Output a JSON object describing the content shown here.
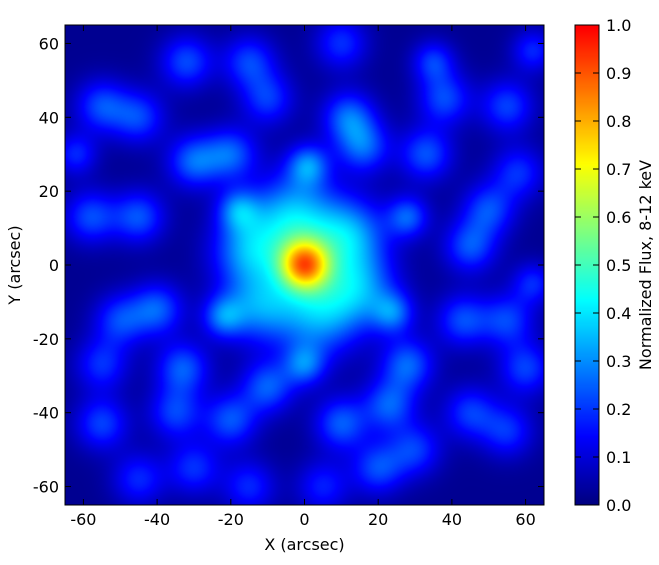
{
  "chart_data": {
    "type": "heatmap",
    "title": "",
    "xlabel": "X (arcsec)",
    "ylabel": "Y (arcsec)",
    "xlim": [
      -65,
      65
    ],
    "ylim": [
      -65,
      65
    ],
    "xticks": [
      -60,
      -40,
      -20,
      0,
      20,
      40,
      60
    ],
    "yticks": [
      -60,
      -40,
      -20,
      0,
      20,
      40,
      60
    ],
    "xtick_labels": [
      "-60",
      "-40",
      "-20",
      "0",
      "20",
      "40",
      "60"
    ],
    "ytick_labels": [
      "-60",
      "-40",
      "-20",
      "0",
      "20",
      "40",
      "60"
    ],
    "grid": false,
    "colormap": "jet",
    "colorbar": {
      "label": "Normalized Flux, 8-12 keV",
      "range": [
        0.0,
        1.0
      ],
      "ticks": [
        0.0,
        0.1,
        0.2,
        0.3,
        0.4,
        0.5,
        0.6,
        0.7,
        0.8,
        0.9,
        1.0
      ],
      "tick_labels": [
        "0.0",
        "0.1",
        "0.2",
        "0.3",
        "0.4",
        "0.5",
        "0.6",
        "0.7",
        "0.8",
        "0.9",
        "1.0"
      ],
      "max_color": "#ff5a00",
      "min_color": "#00007f"
    },
    "background_level": 0.12,
    "blobs": [
      {
        "x": 0,
        "y": 0,
        "sigma": 5,
        "amp": 0.66
      },
      {
        "x": -3,
        "y": 13,
        "sigma": 8,
        "amp": 0.33
      },
      {
        "x": 12,
        "y": 8,
        "sigma": 7,
        "amp": 0.3
      },
      {
        "x": -15,
        "y": 4,
        "sigma": 7,
        "amp": 0.28
      },
      {
        "x": 4,
        "y": -13,
        "sigma": 8,
        "amp": 0.3
      },
      {
        "x": -12,
        "y": -11,
        "sigma": 7,
        "amp": 0.26
      },
      {
        "x": 15,
        "y": -6,
        "sigma": 7,
        "amp": 0.25
      },
      {
        "x": 1,
        "y": 27,
        "sigma": 4,
        "amp": 0.25
      },
      {
        "x": -18,
        "y": 15,
        "sigma": 4,
        "amp": 0.22
      },
      {
        "x": 28,
        "y": 13,
        "sigma": 4,
        "amp": 0.22
      },
      {
        "x": 24,
        "y": -13,
        "sigma": 4,
        "amp": 0.22
      },
      {
        "x": 0,
        "y": -27,
        "sigma": 4,
        "amp": 0.22
      },
      {
        "x": -22,
        "y": -14,
        "sigma": 4,
        "amp": 0.22
      },
      {
        "x": -30,
        "y": 28,
        "sigma": 5,
        "amp": 0.23
      },
      {
        "x": -20,
        "y": 30,
        "sigma": 5,
        "amp": 0.22
      },
      {
        "x": 12,
        "y": 40,
        "sigma": 5,
        "amp": 0.23
      },
      {
        "x": 16,
        "y": 32,
        "sigma": 5,
        "amp": 0.22
      },
      {
        "x": 33,
        "y": 30,
        "sigma": 5,
        "amp": 0.21
      },
      {
        "x": 38,
        "y": 45,
        "sigma": 5,
        "amp": 0.2
      },
      {
        "x": 35,
        "y": 55,
        "sigma": 4,
        "amp": 0.18
      },
      {
        "x": 45,
        "y": 5,
        "sigma": 5,
        "amp": 0.21
      },
      {
        "x": 50,
        "y": 15,
        "sigma": 5,
        "amp": 0.2
      },
      {
        "x": 28,
        "y": -27,
        "sigma": 5,
        "amp": 0.23
      },
      {
        "x": 23,
        "y": -38,
        "sigma": 5,
        "amp": 0.22
      },
      {
        "x": 10,
        "y": -43,
        "sigma": 5,
        "amp": 0.22
      },
      {
        "x": 20,
        "y": -55,
        "sigma": 5,
        "amp": 0.2
      },
      {
        "x": -10,
        "y": -33,
        "sigma": 5,
        "amp": 0.22
      },
      {
        "x": -20,
        "y": -42,
        "sigma": 5,
        "amp": 0.21
      },
      {
        "x": -33,
        "y": -28,
        "sigma": 5,
        "amp": 0.22
      },
      {
        "x": -40,
        "y": -12,
        "sigma": 5,
        "amp": 0.22
      },
      {
        "x": -35,
        "y": -40,
        "sigma": 5,
        "amp": 0.19
      },
      {
        "x": -50,
        "y": -15,
        "sigma": 5,
        "amp": 0.19
      },
      {
        "x": -45,
        "y": 13,
        "sigma": 5,
        "amp": 0.21
      },
      {
        "x": -58,
        "y": 13,
        "sigma": 5,
        "amp": 0.2
      },
      {
        "x": -55,
        "y": 43,
        "sigma": 5,
        "amp": 0.2
      },
      {
        "x": -45,
        "y": 40,
        "sigma": 5,
        "amp": 0.19
      },
      {
        "x": -32,
        "y": 55,
        "sigma": 5,
        "amp": 0.2
      },
      {
        "x": -15,
        "y": 55,
        "sigma": 5,
        "amp": 0.19
      },
      {
        "x": -10,
        "y": 45,
        "sigma": 5,
        "amp": 0.18
      },
      {
        "x": 10,
        "y": 60,
        "sigma": 5,
        "amp": 0.17
      },
      {
        "x": 55,
        "y": 43,
        "sigma": 5,
        "amp": 0.19
      },
      {
        "x": 58,
        "y": 25,
        "sigma": 5,
        "amp": 0.17
      },
      {
        "x": 43,
        "y": -15,
        "sigma": 5,
        "amp": 0.2
      },
      {
        "x": 55,
        "y": -15,
        "sigma": 5,
        "amp": 0.19
      },
      {
        "x": 60,
        "y": -28,
        "sigma": 5,
        "amp": 0.19
      },
      {
        "x": 45,
        "y": -40,
        "sigma": 5,
        "amp": 0.18
      },
      {
        "x": 55,
        "y": -45,
        "sigma": 5,
        "amp": 0.17
      },
      {
        "x": -55,
        "y": -27,
        "sigma": 5,
        "amp": 0.17
      },
      {
        "x": -55,
        "y": -43,
        "sigma": 5,
        "amp": 0.19
      },
      {
        "x": -45,
        "y": -58,
        "sigma": 5,
        "amp": 0.16
      },
      {
        "x": -30,
        "y": -55,
        "sigma": 5,
        "amp": 0.17
      },
      {
        "x": -15,
        "y": -60,
        "sigma": 5,
        "amp": 0.16
      },
      {
        "x": 5,
        "y": -60,
        "sigma": 5,
        "amp": 0.15
      },
      {
        "x": 30,
        "y": -50,
        "sigma": 5,
        "amp": 0.18
      },
      {
        "x": -62,
        "y": 30,
        "sigma": 4,
        "amp": 0.16
      },
      {
        "x": 62,
        "y": 58,
        "sigma": 4,
        "amp": 0.16
      },
      {
        "x": 62,
        "y": -5,
        "sigma": 4,
        "amp": 0.16
      }
    ]
  }
}
